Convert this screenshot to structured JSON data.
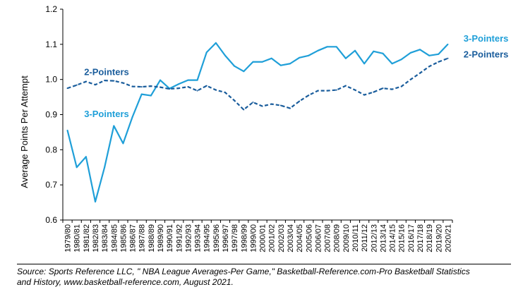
{
  "chart_data": {
    "type": "line",
    "title": "",
    "xlabel": "",
    "ylabel": "Average Points Per Attempt",
    "ylim": [
      0.6,
      1.2
    ],
    "yticks": [
      "0.6",
      "0.7",
      "0.8",
      "0.9",
      "1.0",
      "1.1",
      "1.2"
    ],
    "grid": false,
    "categories": [
      "1979/80",
      "1980/81",
      "1981/82",
      "1982/83",
      "1983/84",
      "1984/85",
      "1985/86",
      "1986/87",
      "1987/88",
      "1988/89",
      "1989/90",
      "1990/91",
      "1991/92",
      "1992/93",
      "1993/94",
      "1994/95",
      "1995/96",
      "1996/97",
      "1997/98",
      "1998/99",
      "1999/00",
      "2000/01",
      "2001/02",
      "2002/03",
      "2003/04",
      "2004/05",
      "2005/06",
      "2006/07",
      "2007/08",
      "2008/09",
      "2009/10",
      "2010/11",
      "2011/12",
      "2012/13",
      "2013/14",
      "2014/15",
      "2015/16",
      "2016/17",
      "2017/18",
      "2018/19",
      "2019/20",
      "2020/21"
    ],
    "series": [
      {
        "name": "3-Pointers",
        "color": "#1f9fd8",
        "style": "solid",
        "values": [
          0.855,
          0.75,
          0.78,
          0.652,
          0.75,
          0.868,
          0.818,
          0.893,
          0.958,
          0.954,
          0.998,
          0.974,
          0.987,
          0.998,
          0.998,
          1.077,
          1.104,
          1.068,
          1.038,
          1.023,
          1.05,
          1.05,
          1.06,
          1.04,
          1.045,
          1.062,
          1.068,
          1.082,
          1.093,
          1.093,
          1.06,
          1.082,
          1.045,
          1.08,
          1.074,
          1.045,
          1.057,
          1.076,
          1.085,
          1.068,
          1.072,
          1.1
        ]
      },
      {
        "name": "2-Pointers",
        "color": "#1a5d9c",
        "style": "dashed",
        "values": [
          0.975,
          0.984,
          0.994,
          0.985,
          0.997,
          0.996,
          0.99,
          0.98,
          0.979,
          0.981,
          0.978,
          0.973,
          0.975,
          0.979,
          0.968,
          0.982,
          0.97,
          0.963,
          0.94,
          0.914,
          0.935,
          0.924,
          0.93,
          0.926,
          0.918,
          0.938,
          0.955,
          0.968,
          0.968,
          0.97,
          0.982,
          0.97,
          0.956,
          0.964,
          0.975,
          0.972,
          0.98,
          1.0,
          1.018,
          1.037,
          1.05,
          1.06
        ]
      }
    ],
    "annotations": [
      {
        "text": "2-Pointers",
        "series": "2-Pointers",
        "placement": "left",
        "x": 2.3,
        "y": 1.012
      },
      {
        "text": "3-Pointers",
        "series": "3-Pointers",
        "placement": "left",
        "x": 2.3,
        "y": 0.893
      },
      {
        "text": "3-Pointers",
        "series": "3-Pointers",
        "placement": "right",
        "x": 43.2,
        "y": 1.108
      },
      {
        "text": "2-Pointers",
        "series": "2-Pointers",
        "placement": "right",
        "x": 43.2,
        "y": 1.063
      }
    ]
  },
  "source": {
    "line1": "Source: Sports Reference LLC, \" NBA League Averages-Per Game,\" Basketball-Reference.com-Pro Basketball Statistics",
    "line2": "and History, www.basketball-reference.com, August 2021."
  }
}
